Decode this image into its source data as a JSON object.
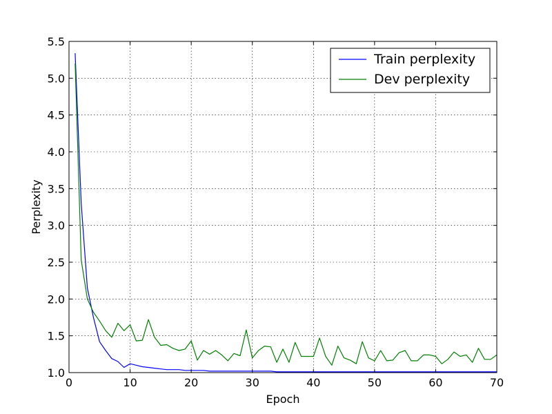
{
  "chart_data": {
    "type": "line",
    "title": "",
    "xlabel": "Epoch",
    "ylabel": "Perplexity",
    "xlim": [
      0,
      70
    ],
    "ylim": [
      1.0,
      5.5
    ],
    "xticks": [
      0,
      10,
      20,
      30,
      40,
      50,
      60,
      70
    ],
    "xtick_labels": [
      "0",
      "10",
      "20",
      "30",
      "40",
      "50",
      "60",
      "70"
    ],
    "yticks": [
      1.0,
      1.5,
      2.0,
      2.5,
      3.0,
      3.5,
      4.0,
      4.5,
      5.0,
      5.5
    ],
    "ytick_labels": [
      "1.0",
      "1.5",
      "2.0",
      "2.5",
      "3.0",
      "3.5",
      "4.0",
      "4.5",
      "5.0",
      "5.5"
    ],
    "grid": true,
    "legend_position": "top-right",
    "series": [
      {
        "name": "Train perplexity",
        "color": "#0000ff",
        "x": [
          1,
          2,
          3,
          4,
          5,
          6,
          7,
          8,
          9,
          10,
          11,
          12,
          13,
          14,
          15,
          16,
          17,
          18,
          19,
          20,
          21,
          22,
          23,
          24,
          25,
          26,
          27,
          28,
          29,
          30,
          31,
          32,
          33,
          34,
          35,
          36,
          37,
          38,
          39,
          40,
          41,
          42,
          43,
          44,
          45,
          46,
          47,
          48,
          49,
          50,
          51,
          52,
          53,
          54,
          55,
          56,
          57,
          58,
          59,
          60,
          61,
          62,
          63,
          64,
          65,
          66,
          67,
          68,
          69,
          70
        ],
        "values": [
          5.34,
          3.3,
          2.15,
          1.75,
          1.42,
          1.3,
          1.19,
          1.15,
          1.07,
          1.12,
          1.1,
          1.08,
          1.07,
          1.06,
          1.05,
          1.04,
          1.04,
          1.04,
          1.03,
          1.03,
          1.03,
          1.03,
          1.02,
          1.02,
          1.02,
          1.02,
          1.02,
          1.02,
          1.02,
          1.02,
          1.02,
          1.02,
          1.02,
          1.01,
          1.01,
          1.01,
          1.01,
          1.01,
          1.01,
          1.01,
          1.01,
          1.01,
          1.01,
          1.01,
          1.01,
          1.01,
          1.01,
          1.01,
          1.01,
          1.01,
          1.01,
          1.01,
          1.01,
          1.01,
          1.01,
          1.01,
          1.01,
          1.01,
          1.01,
          1.01,
          1.01,
          1.01,
          1.01,
          1.01,
          1.01,
          1.01,
          1.01,
          1.01,
          1.01,
          1.01
        ]
      },
      {
        "name": "Dev perplexity",
        "color": "#008000",
        "x": [
          1,
          2,
          3,
          4,
          5,
          6,
          7,
          8,
          9,
          10,
          11,
          12,
          13,
          14,
          15,
          16,
          17,
          18,
          19,
          20,
          21,
          22,
          23,
          24,
          25,
          26,
          27,
          28,
          29,
          30,
          31,
          32,
          33,
          34,
          35,
          36,
          37,
          38,
          39,
          40,
          41,
          42,
          43,
          44,
          45,
          46,
          47,
          48,
          49,
          50,
          51,
          52,
          53,
          54,
          55,
          56,
          57,
          58,
          59,
          60,
          61,
          62,
          63,
          64,
          65,
          66,
          67,
          68,
          69,
          70
        ],
        "values": [
          5.2,
          2.53,
          2.0,
          1.82,
          1.7,
          1.57,
          1.48,
          1.67,
          1.57,
          1.65,
          1.43,
          1.44,
          1.72,
          1.48,
          1.37,
          1.38,
          1.33,
          1.3,
          1.32,
          1.43,
          1.17,
          1.3,
          1.25,
          1.3,
          1.24,
          1.16,
          1.26,
          1.23,
          1.58,
          1.2,
          1.3,
          1.36,
          1.35,
          1.14,
          1.32,
          1.14,
          1.41,
          1.22,
          1.22,
          1.22,
          1.47,
          1.22,
          1.1,
          1.36,
          1.2,
          1.17,
          1.12,
          1.42,
          1.2,
          1.16,
          1.3,
          1.16,
          1.17,
          1.27,
          1.3,
          1.16,
          1.16,
          1.24,
          1.24,
          1.22,
          1.12,
          1.18,
          1.28,
          1.22,
          1.24,
          1.14,
          1.33,
          1.18,
          1.18,
          1.24
        ]
      }
    ]
  }
}
